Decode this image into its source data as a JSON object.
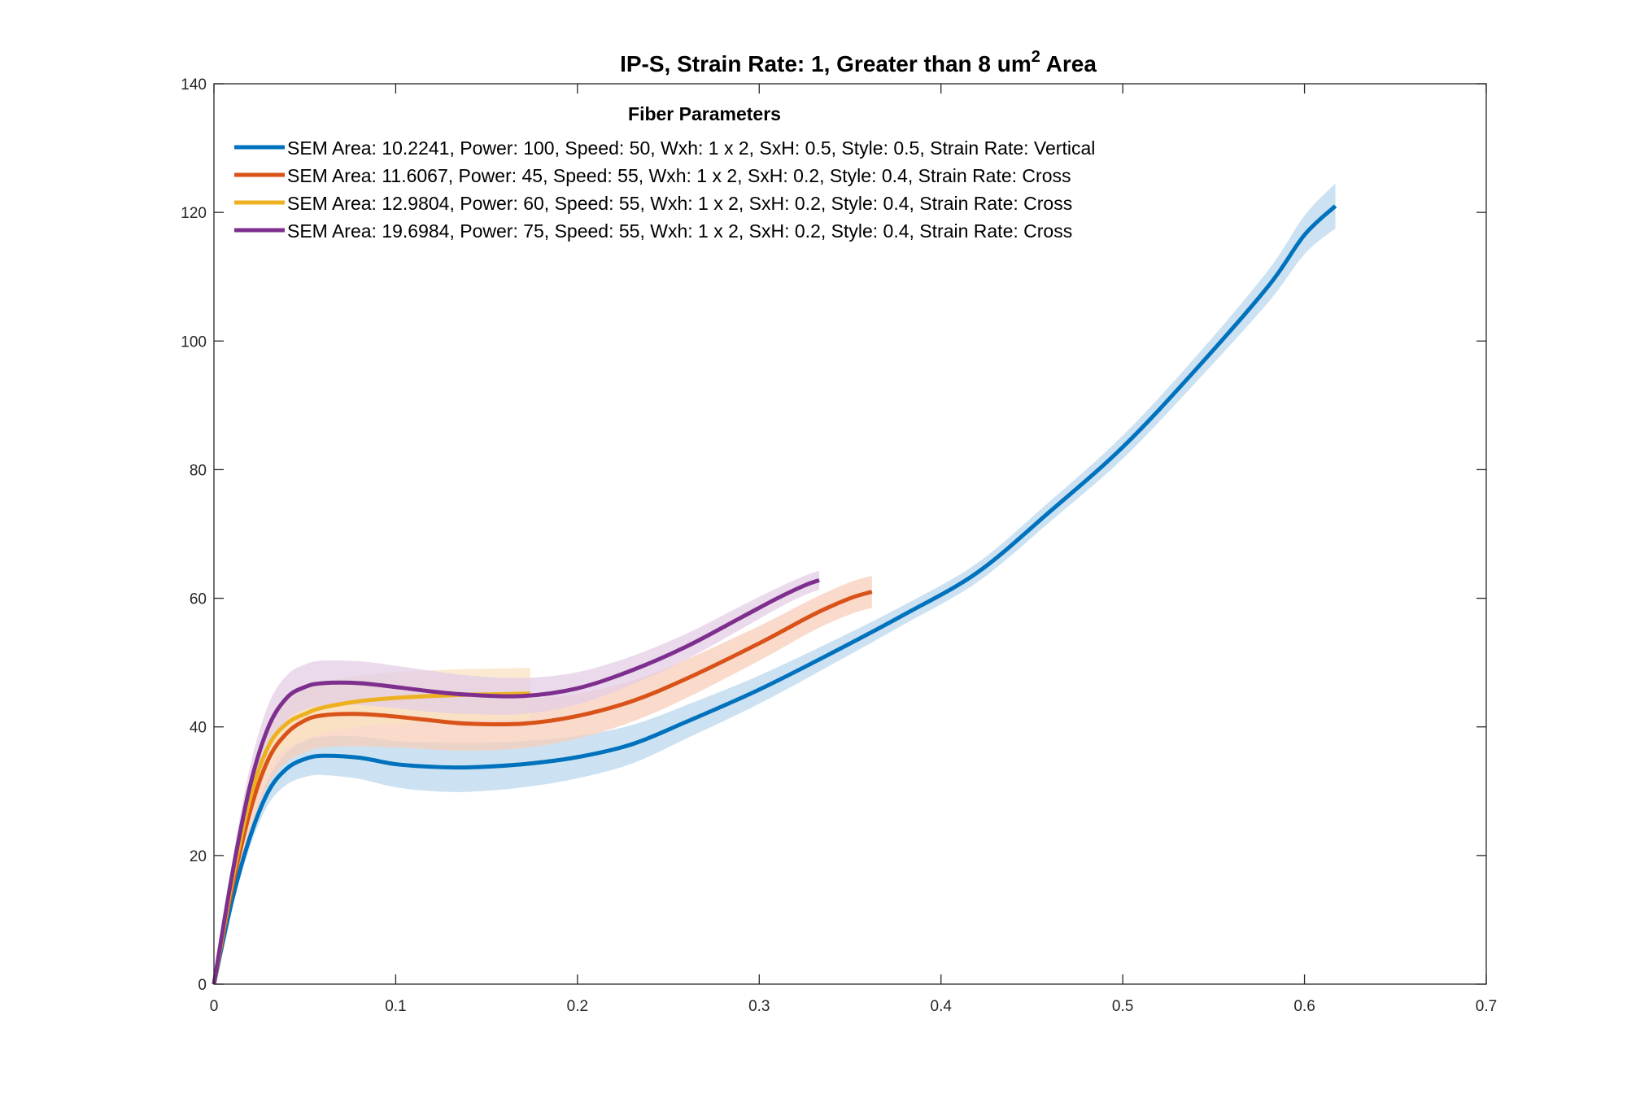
{
  "chart_data": {
    "type": "line",
    "title": "IP-S, Strain Rate: 1, Greater than 8 um",
    "title_superscript": "2",
    "title_suffix": " Area",
    "xlabel": "",
    "ylabel": "",
    "xlim": [
      0,
      0.7
    ],
    "ylim": [
      0,
      140
    ],
    "xticks": [
      0,
      0.1,
      0.2,
      0.3,
      0.4,
      0.5,
      0.6,
      0.7
    ],
    "xtick_labels": [
      "0",
      "0.1",
      "0.2",
      "0.3",
      "0.4",
      "0.5",
      "0.6",
      "0.7"
    ],
    "yticks": [
      0,
      20,
      40,
      60,
      80,
      100,
      120,
      140
    ],
    "ytick_labels": [
      "0",
      "20",
      "40",
      "60",
      "80",
      "100",
      "120",
      "140"
    ],
    "grid": false,
    "legend": {
      "title": "Fiber Parameters",
      "placement": "top-left"
    },
    "series": [
      {
        "name": "SEM Area: 10.2241, Power: 100, Speed: 50, Wxh: 1 x 2, SxH: 0.5, Style: 0.5, Strain Rate: Vertical",
        "color": "#0072BD",
        "band_color": "#BBD8EE",
        "x": [
          0,
          0.01,
          0.02,
          0.03,
          0.04,
          0.05,
          0.06,
          0.08,
          0.1,
          0.12,
          0.14,
          0.17,
          0.2,
          0.23,
          0.26,
          0.3,
          0.34,
          0.38,
          0.42,
          0.46,
          0.5,
          0.54,
          0.58,
          0.6,
          0.617
        ],
        "y": [
          0,
          13,
          23,
          30,
          33.5,
          35,
          35.5,
          35.2,
          34.2,
          33.8,
          33.7,
          34.2,
          35.3,
          37.3,
          40.8,
          45.8,
          51.5,
          57.5,
          64,
          73.5,
          83.5,
          95.5,
          108.5,
          116.5,
          121
        ],
        "band": [
          0,
          1,
          1.5,
          2,
          2.5,
          2.8,
          3,
          3.3,
          3.6,
          3.8,
          3.8,
          3.6,
          3.3,
          3,
          2.6,
          2.2,
          1.8,
          1.5,
          1.5,
          1.6,
          1.8,
          2,
          2.5,
          3,
          3.5
        ]
      },
      {
        "name": "SEM Area: 11.6067, Power: 45, Speed: 55, Wxh: 1 x 2, SxH: 0.2, Style: 0.4, Strain Rate: Cross",
        "color": "#D95319",
        "band_color": "#F7CDB9",
        "x": [
          0,
          0.01,
          0.02,
          0.03,
          0.04,
          0.05,
          0.06,
          0.08,
          0.1,
          0.12,
          0.14,
          0.17,
          0.2,
          0.23,
          0.26,
          0.3,
          0.33,
          0.35,
          0.362
        ],
        "y": [
          0,
          15,
          27,
          35,
          39,
          41,
          41.8,
          42,
          41.6,
          41,
          40.5,
          40.5,
          41.7,
          44,
          47.5,
          53,
          57.5,
          60,
          61
        ],
        "band": [
          0,
          2,
          3,
          4,
          4.5,
          5,
          5,
          5,
          4.8,
          4.5,
          4.2,
          3.8,
          3.5,
          3.2,
          3,
          2.7,
          2.5,
          2.5,
          2.5
        ]
      },
      {
        "name": "SEM Area: 12.9804, Power: 60, Speed: 55, Wxh: 1 x 2, SxH: 0.2, Style: 0.4, Strain Rate: Cross",
        "color": "#EDB120",
        "band_color": "#F9E3C2",
        "x": [
          0,
          0.01,
          0.02,
          0.03,
          0.04,
          0.05,
          0.06,
          0.08,
          0.1,
          0.12,
          0.14,
          0.16,
          0.174
        ],
        "y": [
          0,
          16,
          29,
          37,
          40.5,
          42,
          43,
          44,
          44.5,
          44.8,
          45,
          45.1,
          45.2
        ],
        "band": [
          0,
          2,
          3,
          3.5,
          3.8,
          4,
          4,
          4,
          4,
          4,
          4,
          4,
          4
        ]
      },
      {
        "name": "SEM Area: 19.6984, Power: 75, Speed: 55, Wxh: 1 x 2, SxH: 0.2, Style: 0.4, Strain Rate: Cross",
        "color": "#7E2F8E",
        "band_color": "#E3CDE6",
        "x": [
          0,
          0.01,
          0.02,
          0.03,
          0.04,
          0.05,
          0.06,
          0.08,
          0.1,
          0.12,
          0.14,
          0.17,
          0.2,
          0.23,
          0.26,
          0.29,
          0.31,
          0.325,
          0.333
        ],
        "y": [
          0,
          17,
          31,
          40,
          44.5,
          46.2,
          46.8,
          46.8,
          46.2,
          45.5,
          45,
          44.8,
          46,
          48.8,
          52.5,
          57,
          60,
          62,
          62.8
        ],
        "band": [
          0,
          2,
          3,
          3.5,
          3.5,
          3.5,
          3.5,
          3.4,
          3.3,
          3.2,
          3,
          2.8,
          2.5,
          2.2,
          2,
          1.8,
          1.6,
          1.5,
          1.5
        ]
      }
    ]
  }
}
